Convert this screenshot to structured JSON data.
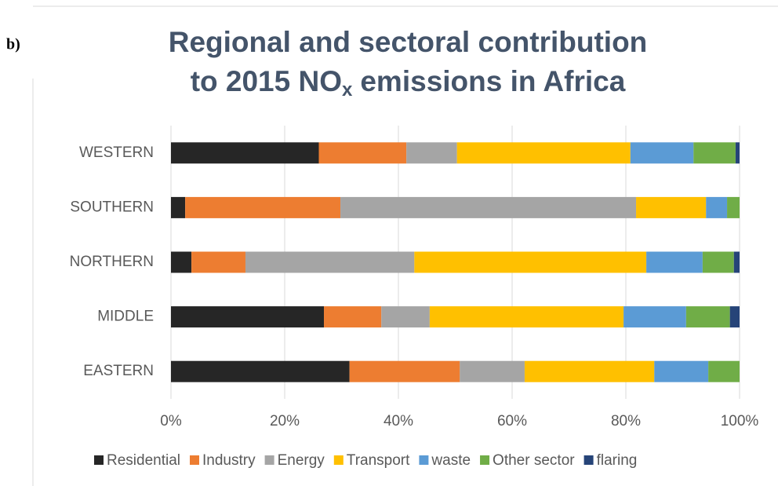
{
  "chart_data": {
    "type": "stacked-bar-horizontal",
    "panel_label": "b)",
    "title": {
      "line1": "Regional and sectoral contribution",
      "line2_start": "to 2015 NO",
      "line2_sub": "x",
      "line2_end": "emissions in Africa"
    },
    "categories": [
      "WESTERN",
      "SOUTHERN",
      "NORTHERN",
      "MIDDLE",
      "EASTERN"
    ],
    "series": [
      {
        "name": "Residential",
        "color": "#262626",
        "values": [
          26,
          2.5,
          3.6,
          26.9,
          31.4
        ]
      },
      {
        "name": "Industry",
        "color": "#ed7d31",
        "values": [
          15.4,
          27.3,
          9.5,
          10.1,
          19.4
        ]
      },
      {
        "name": "Energy",
        "color": "#a5a5a5",
        "values": [
          8.9,
          52,
          29.7,
          8.5,
          11.4
        ]
      },
      {
        "name": "Transport",
        "color": "#ffc000",
        "values": [
          30.5,
          12.3,
          40.8,
          34.1,
          22.8
        ]
      },
      {
        "name": "waste",
        "color": "#5b9bd5",
        "values": [
          11.1,
          3.7,
          9.9,
          11,
          9.5
        ]
      },
      {
        "name": "Other sector",
        "color": "#70ad47",
        "values": [
          7.4,
          2.2,
          5.5,
          7.7,
          5.5
        ]
      },
      {
        "name": "flaring",
        "color": "#264478",
        "values": [
          0.7,
          0,
          1,
          1.7,
          0
        ]
      }
    ],
    "xlim": [
      0,
      100
    ],
    "xticks": [
      {
        "value": 0,
        "label": "0%"
      },
      {
        "value": 20,
        "label": "20%"
      },
      {
        "value": 40,
        "label": "40%"
      },
      {
        "value": 60,
        "label": "60%"
      },
      {
        "value": 80,
        "label": "80%"
      },
      {
        "value": 100,
        "label": "100%"
      }
    ],
    "grid": true,
    "legend": "bottom"
  }
}
